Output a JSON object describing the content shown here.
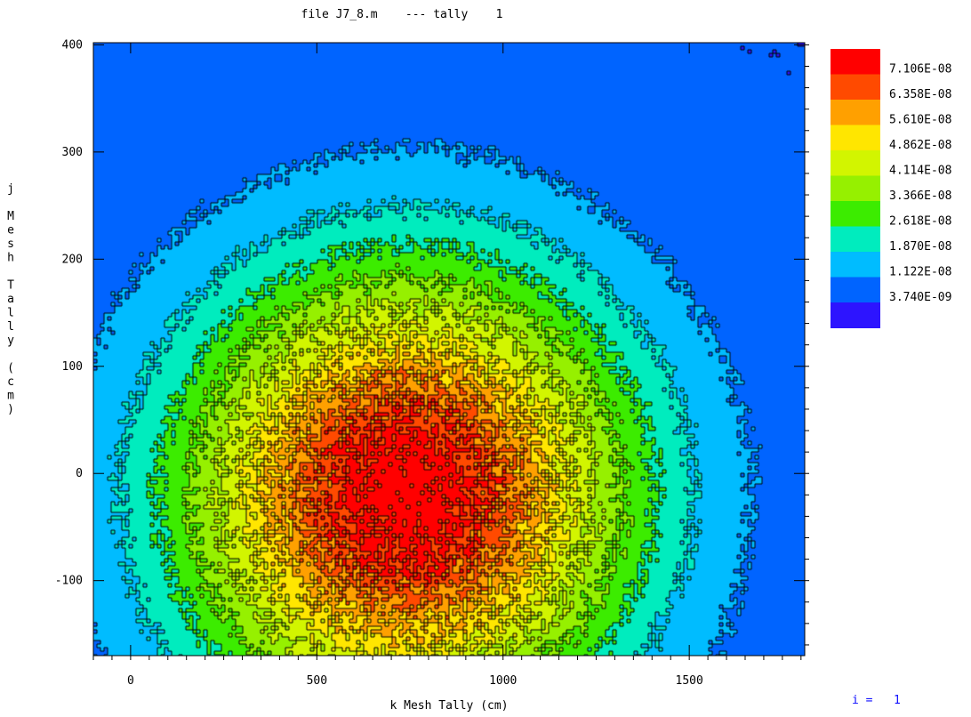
{
  "chart_data": {
    "type": "heatmap",
    "title": "file J7_8.m    --- tally    1",
    "xlabel": "k Mesh Tally (cm)",
    "ylabel": "j Mesh Tally (cm)",
    "xlim": [
      -100,
      1810
    ],
    "ylim": [
      -170,
      402
    ],
    "xticks": [
      0,
      500,
      1000,
      1500
    ],
    "yticks": [
      -100,
      0,
      100,
      200,
      300,
      400
    ],
    "colorbar": {
      "levels": [
        "7.106E-08",
        "6.358E-08",
        "5.610E-08",
        "4.862E-08",
        "4.114E-08",
        "3.366E-08",
        "2.618E-08",
        "1.870E-08",
        "1.122E-08",
        "3.740E-09"
      ],
      "colors": [
        "#ff0000",
        "#ff4a00",
        "#ffa000",
        "#ffe600",
        "#d2f500",
        "#96f000",
        "#3cec00",
        "#00ecbe",
        "#00bcff",
        "#0064ff",
        "#2d14ff"
      ]
    },
    "field": {
      "peak_value": 7.4e-08,
      "peak_center": [
        740,
        -20
      ],
      "sigma_x": 430,
      "sigma_y": 150,
      "tail_offset": 4e-09
    },
    "contour_lines": true,
    "grid": false,
    "legend_position": "right"
  },
  "footer": {
    "index_label": "i =   1"
  }
}
